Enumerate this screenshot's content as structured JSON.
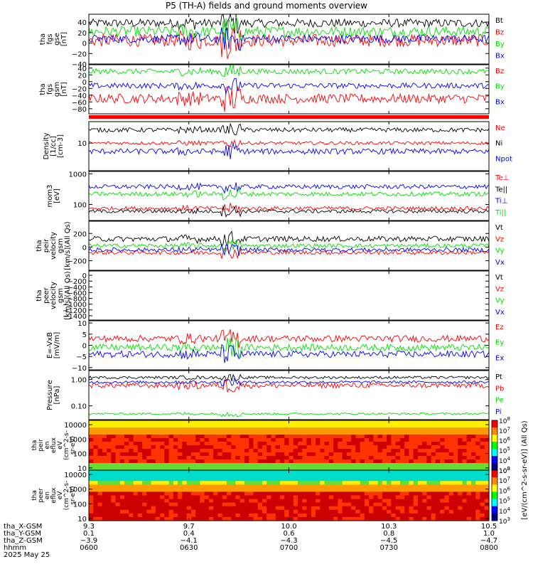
{
  "title": "P5 (TH-A) fields and ground moments overview",
  "colors": {
    "black": "#000000",
    "red": "#ff0000",
    "green": "#00e000",
    "blue": "#0000ff"
  },
  "chart_data": [
    {
      "type": "line",
      "id": "fgs-gse",
      "ylabel": [
        "tha",
        "fgs",
        "gse",
        "[nT]"
      ],
      "ylim": [
        -40,
        55
      ],
      "yticks": [
        -40,
        -20,
        0,
        20,
        40
      ],
      "series": [
        {
          "name": "Bt",
          "color": "black",
          "level": 38,
          "noise": 8
        },
        {
          "name": "Bz",
          "color": "red",
          "level": 5,
          "noise": 12
        },
        {
          "name": "By",
          "color": "green",
          "level": 22,
          "noise": 10
        },
        {
          "name": "Bx",
          "color": "blue",
          "level": 8,
          "noise": 8
        }
      ]
    },
    {
      "type": "line",
      "id": "fgs-gsm",
      "ylabel": [
        "tha",
        "fgs",
        "gsm",
        "[nT]"
      ],
      "ylim": [
        -95,
        50
      ],
      "yticks": [
        -80,
        -60,
        -40,
        -20,
        0,
        20,
        40
      ],
      "series": [
        {
          "name": "Bz",
          "color": "red",
          "level": -50,
          "noise": 14
        },
        {
          "name": "By",
          "color": "green",
          "level": 30,
          "noise": 8
        },
        {
          "name": "Bx",
          "color": "blue",
          "level": -12,
          "noise": 8
        }
      ]
    },
    {
      "type": "line",
      "id": "density",
      "scale": "log",
      "ylabel": [
        "Density",
        "[1/cc]",
        "[cm-3]"
      ],
      "ylim": [
        1,
        60
      ],
      "yticks": [
        10
      ],
      "series": [
        {
          "name": "Ne",
          "color": "red",
          "level": 10,
          "noise": 0.06
        },
        {
          "name": "Ni",
          "color": "black",
          "level": 30,
          "noise": 0.08
        },
        {
          "name": "Npot",
          "color": "blue",
          "level": 5,
          "noise": 0.1
        }
      ]
    },
    {
      "type": "line",
      "id": "temperature",
      "scale": "log",
      "ylabel": [
        "mom3",
        "[eV]"
      ],
      "ylim": [
        30,
        1200
      ],
      "yticks": [
        100,
        1000
      ],
      "series": [
        {
          "name": "Te⊥",
          "color": "red",
          "level": 75,
          "noise": 0.06
        },
        {
          "name": "Te||",
          "color": "black",
          "level": 60,
          "noise": 0.06
        },
        {
          "name": "Ti⊥",
          "color": "blue",
          "level": 380,
          "noise": 0.07
        },
        {
          "name": "Ti||",
          "color": "green",
          "level": 220,
          "noise": 0.07
        }
      ]
    },
    {
      "type": "line",
      "id": "peir-velocity",
      "ylabel": [
        "tha",
        "peir",
        "velocity",
        "gsm",
        "[km/s](All Qs)"
      ],
      "ylim": [
        -340,
        380
      ],
      "yticks": [
        -200,
        0,
        200
      ],
      "series": [
        {
          "name": "Vt",
          "color": "black",
          "level": 120,
          "noise": 40
        },
        {
          "name": "Vz",
          "color": "red",
          "level": -80,
          "noise": 30
        },
        {
          "name": "Vy",
          "color": "green",
          "level": 20,
          "noise": 30
        },
        {
          "name": "Vx",
          "color": "blue",
          "level": -40,
          "noise": 30
        }
      ]
    },
    {
      "type": "line",
      "id": "peer-velocity",
      "ylabel": [
        "tha",
        "peer",
        "velocity",
        "gsm",
        "[km/s](All Qs)"
      ],
      "ylim": [
        -1550,
        150
      ],
      "yticks": [
        0,
        -200,
        -400,
        -600,
        -800,
        -1000,
        -1200,
        -1400
      ],
      "series": [
        {
          "name": "Vt",
          "color": "black",
          "level": null
        },
        {
          "name": "Vz",
          "color": "red",
          "level": null
        },
        {
          "name": "Vy",
          "color": "green",
          "level": null
        },
        {
          "name": "Vx",
          "color": "blue",
          "level": null
        }
      ]
    },
    {
      "type": "line",
      "id": "efield",
      "ylabel": [
        "E=-VxB",
        "[mV/m]"
      ],
      "ylim": [
        -11,
        11
      ],
      "yticks": [
        -10,
        -5,
        0,
        5,
        10
      ],
      "series": [
        {
          "name": "Ez",
          "color": "red",
          "level": 3,
          "noise": 1.5
        },
        {
          "name": "Ey",
          "color": "green",
          "level": -1,
          "noise": 1.5
        },
        {
          "name": "Ex",
          "color": "blue",
          "level": -4,
          "noise": 1.5
        }
      ]
    },
    {
      "type": "line",
      "id": "pressure",
      "scale": "log",
      "ylabel": [
        "Pressure",
        "[nPa]"
      ],
      "ylim": [
        0.03,
        2.2
      ],
      "yticks": [
        0.1,
        1
      ],
      "yticklabels": [
        "0.10",
        "1.00"
      ],
      "series": [
        {
          "name": "Pt",
          "color": "black",
          "level": 1.2,
          "noise": 0.05
        },
        {
          "name": "Pb",
          "color": "red",
          "level": 0.6,
          "noise": 0.1
        },
        {
          "name": "Pe",
          "color": "green",
          "level": 0.05,
          "noise": 0.04
        },
        {
          "name": "Pi",
          "color": "blue",
          "level": 0.8,
          "noise": 0.05
        }
      ]
    },
    {
      "type": "heatmap",
      "id": "peir-eflux",
      "scale": "log",
      "ylabel": [
        "tha",
        "peir",
        "en",
        "eflux",
        "eV",
        "(cm^2-s-",
        "sr-eV)"
      ],
      "ylim": [
        7,
        20000
      ],
      "yticks": [
        10,
        100,
        1000,
        10000
      ],
      "colorbar": {
        "ticks": [
          "10^3",
          "10^4",
          "10^5",
          "10^6",
          "10^7",
          "10^8"
        ]
      }
    },
    {
      "type": "heatmap",
      "id": "peer-eflux",
      "scale": "log",
      "ylabel": [
        "tha",
        "peer",
        "en",
        "eflux",
        "eV",
        "(cm^2-s-",
        "sr-eV)"
      ],
      "ylim": [
        7,
        20000
      ],
      "yticks": [
        10,
        100,
        1000,
        10000
      ],
      "colorbar": {
        "ticks": [
          "10^3",
          "10^4",
          "10^5",
          "10^6",
          "10^7",
          "10^8"
        ]
      }
    }
  ],
  "colorbar_label": "[eV/(cm^2-s-sr-eV)] (All Qs)",
  "xaxis": {
    "time_range": [
      "0600",
      "0800"
    ],
    "rows": [
      {
        "label": "tha_X-GSM",
        "values": [
          "9.3",
          "9.7",
          "10.0",
          "10.3",
          "10.5"
        ]
      },
      {
        "label": "tha_Y-GSM",
        "values": [
          "0.1",
          "0.4",
          "0.6",
          "0.8",
          "1.0"
        ]
      },
      {
        "label": "tha_Z-GSM",
        "values": [
          "-3.9",
          "-4.1",
          "-4.3",
          "-4.5",
          "-4.7"
        ]
      },
      {
        "label": "hhmm",
        "values": [
          "0600",
          "0630",
          "0700",
          "0730",
          "0800"
        ]
      },
      {
        "label": "2025 May 25",
        "values": []
      }
    ]
  }
}
